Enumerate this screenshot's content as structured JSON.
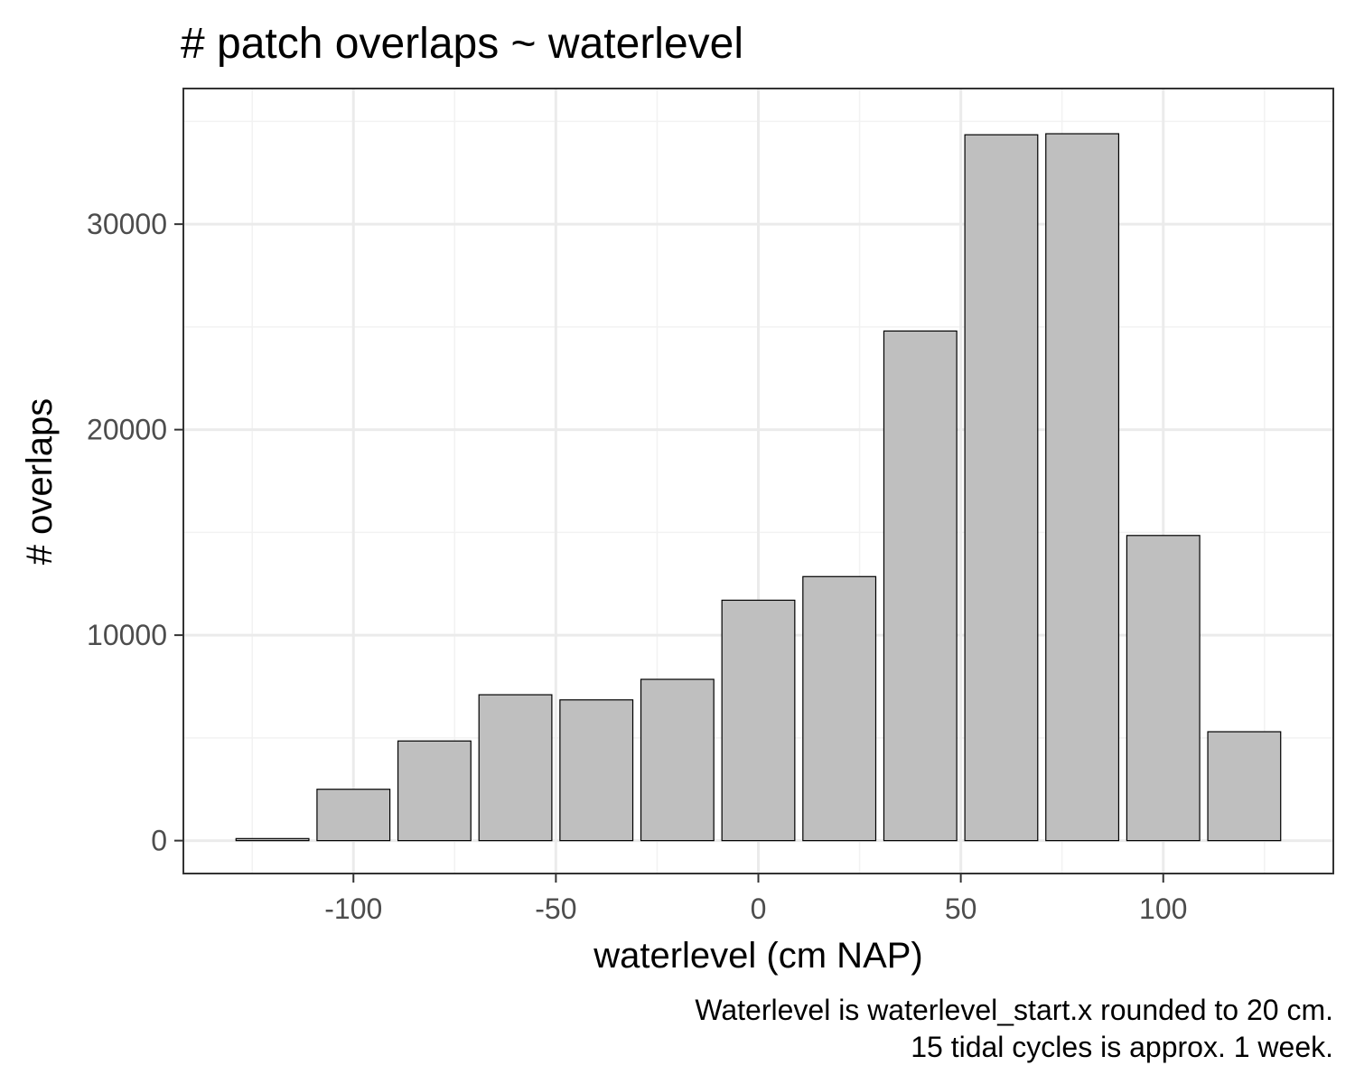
{
  "chart_data": {
    "type": "bar",
    "title": "# patch overlaps ~ waterlevel",
    "xlabel": "waterlevel (cm NAP)",
    "ylabel": "# overlaps",
    "caption_lines": [
      "Waterlevel is waterlevel_start.x rounded to 20 cm.",
      "15 tidal cycles is approx. 1 week."
    ],
    "x": [
      -120,
      -100,
      -80,
      -60,
      -40,
      -20,
      0,
      20,
      40,
      60,
      80,
      100,
      120
    ],
    "values": [
      100,
      2500,
      4850,
      7100,
      6850,
      7850,
      11700,
      12850,
      24800,
      34350,
      34400,
      14850,
      5300
    ],
    "xlim": [
      -142,
      142
    ],
    "ylim": [
      -1600,
      36600
    ],
    "x_ticks": [
      -100,
      -50,
      0,
      50,
      100
    ],
    "y_ticks": [
      0,
      10000,
      20000,
      30000
    ],
    "x_tick_labels": [
      "-100",
      "-50",
      "0",
      "50",
      "100"
    ],
    "y_tick_labels": [
      "0",
      "10000",
      "20000",
      "30000"
    ],
    "bar_width": 18,
    "grid": true,
    "colors": {
      "bar_fill": "#bfbfbf",
      "bar_stroke": "#000000",
      "grid_major": "#ebebeb",
      "grid_minor": "#f2f2f2",
      "panel_border": "#333333",
      "tick_text": "#4d4d4d"
    }
  }
}
